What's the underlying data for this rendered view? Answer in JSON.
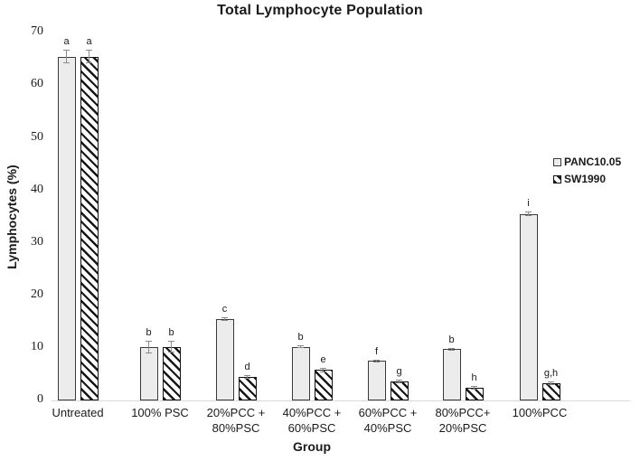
{
  "figure": {
    "title": "Total Lymphocyte Population",
    "x_axis_title": "Group",
    "y_axis_label": "Lymphocytes (%)"
  },
  "chart_data": {
    "type": "bar",
    "title": "Total Lymphocyte Population",
    "xlabel": "Group",
    "ylabel": "Lymphocytes (%)",
    "ylim": [
      0,
      70
    ],
    "yticks": [
      0,
      10,
      20,
      30,
      40,
      50,
      60,
      70
    ],
    "grid": false,
    "legend_position": "right",
    "error_bars": true,
    "categories": [
      "Untreated",
      "100% PSC",
      "20%PCC + 80%PSC",
      "40%PCC + 60%PSC",
      "60%PCC + 40%PSC",
      "80%PCC+ 20%PSC",
      "100%PCC"
    ],
    "category_lines": [
      [
        "Untreated"
      ],
      [
        "100% PSC"
      ],
      [
        "20%PCC +",
        "80%PSC"
      ],
      [
        "40%PCC +",
        "60%PSC"
      ],
      [
        "60%PCC +",
        "40%PSC"
      ],
      [
        "80%PCC+",
        "20%PSC"
      ],
      [
        "100%PCC"
      ]
    ],
    "series": [
      {
        "name": "PANC10.05",
        "pattern": "solid",
        "values": [
          65.5,
          10.2,
          15.5,
          10.2,
          7.5,
          9.8,
          35.5
        ],
        "errors": [
          1.3,
          1.2,
          0.3,
          0.3,
          0.25,
          0.25,
          0.4
        ],
        "sig_labels": [
          "a",
          "b",
          "c",
          "b",
          "f",
          "b",
          "i"
        ]
      },
      {
        "name": "SW1990",
        "pattern": "hatch",
        "values": [
          65.5,
          10.2,
          4.4,
          5.8,
          3.6,
          2.4,
          3.2
        ],
        "errors": [
          1.3,
          1.1,
          0.35,
          0.4,
          0.3,
          0.3,
          0.35
        ],
        "sig_labels": [
          "a",
          "b",
          "d",
          "e",
          "g",
          "h",
          "g,h"
        ]
      }
    ]
  },
  "colors": {
    "panc_fill": "#ececec",
    "bar_border": "#3a3a3a",
    "hatch_border": "#111111",
    "hatch_stripe": "#151515",
    "hatch_bg": "#ffffff",
    "error_bar": "#8a8a8a",
    "baseline": "#d9d9d9",
    "text": "#1a1a1a"
  }
}
